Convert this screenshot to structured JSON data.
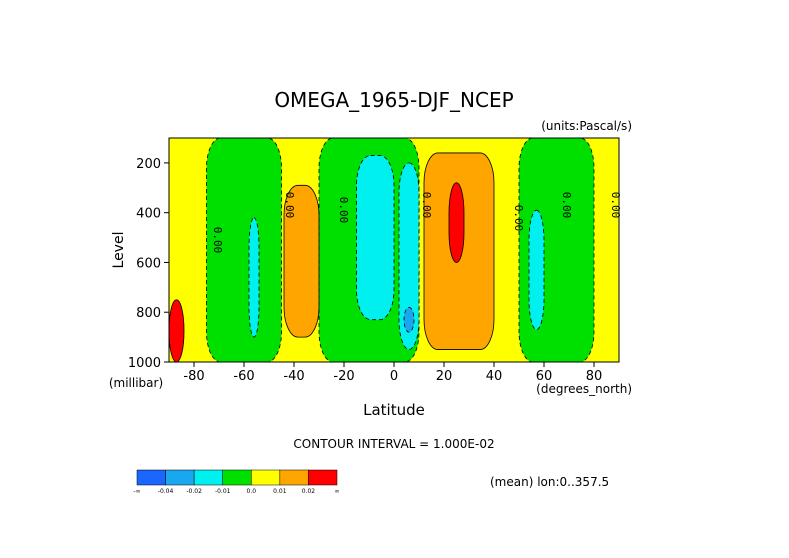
{
  "chart_data": {
    "type": "contour",
    "title": "OMEGA_1965-DJF_NCEP",
    "units": "(units:Pascal/s)",
    "ylabel": "Level",
    "yunit": "(millibar)",
    "xlabel": "Latitude",
    "xunit": "(degrees_north)",
    "x_ticks": [
      "-80",
      "-60",
      "-40",
      "-20",
      "0",
      "20",
      "40",
      "60",
      "80"
    ],
    "y_ticks": [
      "200",
      "400",
      "600",
      "800",
      "1000"
    ],
    "xlim": [
      -90,
      90
    ],
    "ylim": [
      1000,
      100
    ],
    "contour_interval_text": "CONTOUR INTERVAL = 1.000E-02",
    "mean_text": "(mean) lon:0..357.5",
    "contour_labels": [
      "0.00",
      "0.00",
      "0.00",
      "0.00",
      "0.00",
      "0.00",
      "0.00"
    ],
    "colorbar": {
      "colors": [
        "#1a66ff",
        "#19a8f0",
        "#00f0f0",
        "#00e000",
        "#ffff00",
        "#ffa500",
        "#ff0000"
      ],
      "labels": [
        "-∞",
        "-0.04",
        "-0.02",
        "-0.01",
        "0.0",
        "0.01",
        "0.02",
        "∞"
      ]
    },
    "regions": [
      {
        "level": "positive_small",
        "color": "#ffff00",
        "desc": "background"
      },
      {
        "level": "negative_small",
        "color": "#00e000",
        "lat_range": [
          -75,
          -45
        ],
        "p_range": [
          100,
          1000
        ]
      },
      {
        "level": "negative_small",
        "color": "#00e000",
        "lat_range": [
          -30,
          10
        ],
        "p_range": [
          100,
          1000
        ]
      },
      {
        "level": "negative_small",
        "color": "#00e000",
        "lat_range": [
          50,
          80
        ],
        "p_range": [
          100,
          1000
        ]
      },
      {
        "level": "negative_medium",
        "color": "#00f0f0",
        "lat_range": [
          -58,
          -54
        ],
        "p_range": [
          420,
          900
        ]
      },
      {
        "level": "negative_medium",
        "color": "#00f0f0",
        "lat_range": [
          -15,
          0
        ],
        "p_range": [
          170,
          830
        ]
      },
      {
        "level": "negative_medium",
        "color": "#00f0f0",
        "lat_range": [
          2,
          10
        ],
        "p_range": [
          200,
          950
        ]
      },
      {
        "level": "negative_medium",
        "color": "#00f0f0",
        "lat_range": [
          54,
          60
        ],
        "p_range": [
          390,
          870
        ]
      },
      {
        "level": "negative_large",
        "color": "#19a8f0",
        "lat_range": [
          4,
          8
        ],
        "p_range": [
          780,
          880
        ]
      },
      {
        "level": "positive_medium",
        "color": "#ffa500",
        "lat_range": [
          -44,
          -30
        ],
        "p_range": [
          290,
          900
        ]
      },
      {
        "level": "positive_medium",
        "color": "#ffa500",
        "lat_range": [
          12,
          40
        ],
        "p_range": [
          160,
          950
        ]
      },
      {
        "level": "positive_large",
        "color": "#ff0000",
        "lat_range": [
          22,
          28
        ],
        "p_range": [
          280,
          600
        ]
      },
      {
        "level": "positive_large",
        "color": "#ff0000",
        "lat_range": [
          -90,
          -84
        ],
        "p_range": [
          750,
          1000
        ]
      }
    ]
  }
}
